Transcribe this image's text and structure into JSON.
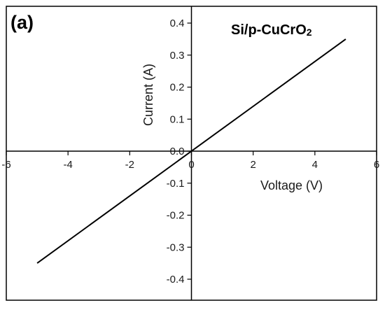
{
  "chart_data": {
    "type": "line",
    "panel_label": "(a)",
    "title": "Si/p-CuCrO",
    "title_subscript": "2",
    "xlabel": "Voltage (V)",
    "ylabel": "Current (A)",
    "xlim": [
      -6,
      6
    ],
    "ylim": [
      -0.43,
      0.43
    ],
    "x_ticks": [
      -6,
      -4,
      -2,
      0,
      2,
      4,
      6
    ],
    "x_tick_labels": [
      "-6",
      "-4",
      "-2",
      "0",
      "2",
      "4",
      "6"
    ],
    "y_ticks": [
      -0.4,
      -0.3,
      -0.2,
      -0.1,
      0.0,
      0.1,
      0.2,
      0.3,
      0.4
    ],
    "y_tick_labels": [
      "-0.4",
      "-0.3",
      "-0.2",
      "-0.1",
      "0.0",
      "0.1",
      "0.2",
      "0.3",
      "0.4"
    ],
    "grid": false,
    "series": [
      {
        "color": "#000000",
        "x": [
          -5,
          5
        ],
        "y": [
          -0.35,
          0.35
        ]
      }
    ]
  }
}
